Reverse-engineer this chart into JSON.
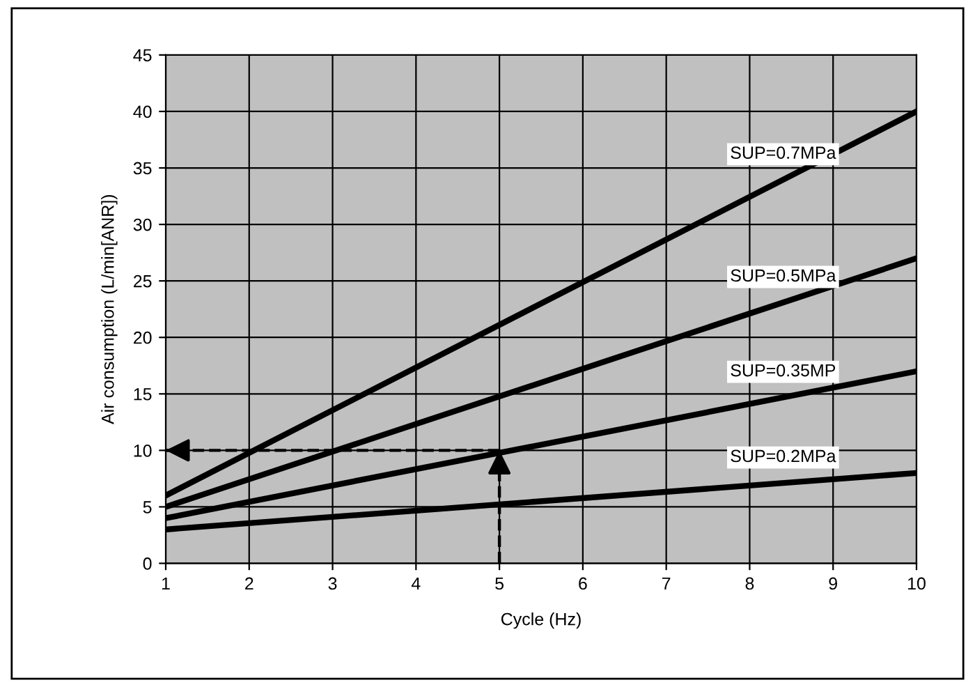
{
  "chart_data": {
    "type": "line",
    "xlabel": "Cycle (Hz)",
    "ylabel": "Air consumption (L/min[ANR])",
    "xlim": [
      1,
      10
    ],
    "ylim": [
      0,
      45
    ],
    "xticks": [
      1,
      2,
      3,
      4,
      5,
      6,
      7,
      8,
      9,
      10
    ],
    "yticks": [
      0,
      5,
      10,
      15,
      20,
      25,
      30,
      35,
      40,
      45
    ],
    "grid": true,
    "legend": false,
    "line_style": "solid",
    "marker": "none",
    "series": [
      {
        "name": "SUP=0.7MPa",
        "color": "#000000",
        "x": [
          1,
          10
        ],
        "values": [
          6,
          40
        ]
      },
      {
        "name": "SUP=0.5MPa",
        "color": "#000000",
        "x": [
          1,
          10
        ],
        "values": [
          5,
          27
        ]
      },
      {
        "name": "SUP=0.35MP",
        "color": "#000000",
        "x": [
          1,
          10
        ],
        "values": [
          4,
          17
        ]
      },
      {
        "name": "SUP=0.2MPa",
        "color": "#000000",
        "x": [
          1,
          10
        ],
        "values": [
          3,
          8
        ]
      },
      {
        "color": "#000000",
        "x": [
          5,
          5
        ],
        "values": [
          0,
          10
        ],
        "line_style": "dashed"
      },
      {
        "color": "#000000",
        "x": [
          5,
          1
        ],
        "values": [
          10,
          10
        ],
        "line_style": "dashed"
      }
    ]
  }
}
